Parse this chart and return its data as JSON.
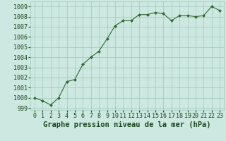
{
  "x": [
    0,
    1,
    2,
    3,
    4,
    5,
    6,
    7,
    8,
    9,
    10,
    11,
    12,
    13,
    14,
    15,
    16,
    17,
    18,
    19,
    20,
    21,
    22,
    23
  ],
  "y": [
    1000.0,
    999.7,
    999.3,
    1000.0,
    1001.6,
    1001.8,
    1003.3,
    1004.0,
    1004.6,
    1005.8,
    1007.1,
    1007.6,
    1007.6,
    1008.2,
    1008.2,
    1008.4,
    1008.3,
    1007.6,
    1008.1,
    1008.1,
    1008.0,
    1008.1,
    1009.0,
    1008.6
  ],
  "line_color": "#2d6a2d",
  "marker_color": "#2d6a2d",
  "bg_color": "#cce8e0",
  "grid_color": "#9fc8ba",
  "title": "Graphe pression niveau de la mer (hPa)",
  "xlabel_ticks": [
    "0",
    "1",
    "2",
    "3",
    "4",
    "5",
    "6",
    "7",
    "8",
    "9",
    "10",
    "11",
    "12",
    "13",
    "14",
    "15",
    "16",
    "17",
    "18",
    "19",
    "20",
    "21",
    "22",
    "23"
  ],
  "ylim": [
    998.8,
    1009.5
  ],
  "yticks": [
    999,
    1000,
    1001,
    1002,
    1003,
    1004,
    1005,
    1006,
    1007,
    1008,
    1009
  ],
  "title_fontsize": 7.5,
  "tick_fontsize": 6,
  "title_color": "#1a4a1a",
  "tick_color": "#1a4a1a"
}
